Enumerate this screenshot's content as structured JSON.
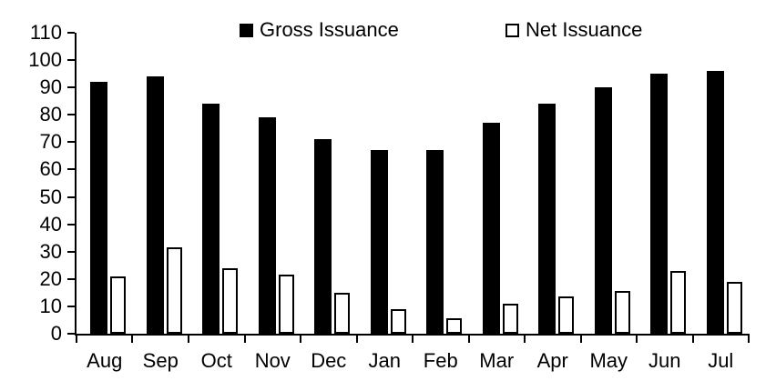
{
  "chart_data": {
    "type": "bar",
    "categories": [
      "Aug",
      "Sep",
      "Oct",
      "Nov",
      "Dec",
      "Jan",
      "Feb",
      "Mar",
      "Apr",
      "May",
      "Jun",
      "Jul"
    ],
    "series": [
      {
        "name": "Gross Issuance",
        "style": "filled",
        "fill": "#000000",
        "values": [
          92,
          94,
          84,
          79,
          71,
          67,
          67,
          77,
          84,
          90,
          95,
          96
        ]
      },
      {
        "name": "Net Issuance",
        "style": "outlined",
        "fill": "#ffffff",
        "outline": "#000000",
        "values": [
          21,
          31.5,
          24,
          21.5,
          15,
          9,
          5.5,
          11,
          13.5,
          15.5,
          23,
          19
        ]
      }
    ],
    "title": "",
    "xlabel": "",
    "ylabel": "",
    "ylim": [
      0,
      110
    ],
    "yticks": [
      0,
      10,
      20,
      30,
      40,
      50,
      60,
      70,
      80,
      90,
      100,
      110
    ],
    "grid": false,
    "legend_position": "top"
  },
  "colors": {
    "background": "#ffffff",
    "axis": "#000000",
    "text": "#000000",
    "gross_bar": "#000000",
    "net_bar_fill": "#ffffff",
    "net_bar_outline": "#000000"
  }
}
